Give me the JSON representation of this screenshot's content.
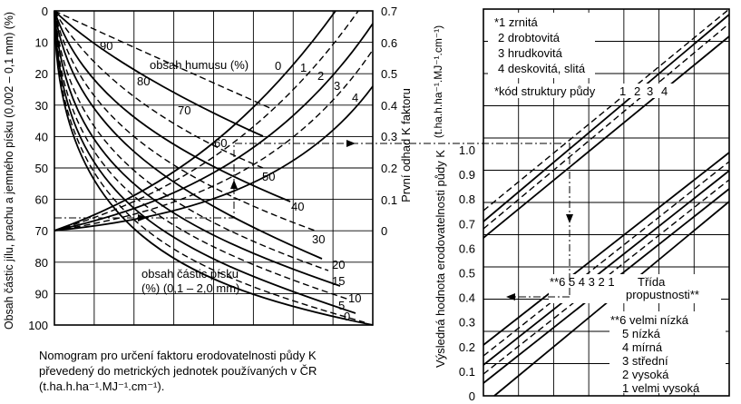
{
  "left_panel": {
    "left_axis_label": "Obsah částic jílu, prachu a jemného písku (0,002 – 0,1 mm) (%)",
    "right_axis_label": "První odhad K faktoru",
    "left_ticks": [
      "0",
      "10",
      "20",
      "30",
      "40",
      "50",
      "60",
      "70",
      "80",
      "90",
      "100"
    ],
    "right_ticks": [
      "0.7",
      "0.6",
      "0.5",
      "0.4",
      "0.3",
      "0.2",
      "0.1",
      "0"
    ],
    "humus_title": "obsah humusu (%)",
    "humus_labels": [
      "0",
      "1",
      "2",
      "3",
      "4"
    ],
    "sand_title_line1": "obsah částic písku",
    "sand_title_line2": "(%) (0,1 – 2,0 mm)",
    "sand_labels": [
      "90",
      "80",
      "70",
      "60",
      "50",
      "40",
      "30",
      "20",
      "15",
      "10",
      "5",
      "0"
    ],
    "caption_line1": "Nomogram pro určení  faktoru erodovatelnosti půdy K",
    "caption_line2": "převedený do metrických jednotek používaných v ČR",
    "caption_line3": "(t.ha.h.ha⁻¹.MJ⁻¹.cm⁻¹)."
  },
  "right_panel": {
    "axis_label": "Výsledná hodnota erodovatelnosti půdy K",
    "unit_label": "(t.ha.h.ha⁻¹.MJ⁻¹.cm⁻¹)",
    "ticks": [
      "0",
      "0.1",
      "0.2",
      "0.3",
      "0.4",
      "0.5",
      "0.6",
      "0.7",
      "0.8",
      "0.9",
      "1.0"
    ],
    "structure_legend": [
      "*1 zrnitá",
      "2 drobtovitá",
      "3 hrudkovitá",
      "4 deskovitá, slitá"
    ],
    "structure_code_label": "*kód struktury půdy",
    "structure_curve_labels": [
      "1",
      "2",
      "3",
      "4"
    ],
    "permeability_marker": "**6 5 4 3 2 1",
    "permeability_title_line1": "Třída",
    "permeability_title_line2": "propustnosti**",
    "permeability_legend": [
      "**6 velmi nízká",
      "5 nízká",
      "4 mírná",
      "3 střední",
      "2 vysoká",
      "1 velmi vysoká"
    ]
  }
}
